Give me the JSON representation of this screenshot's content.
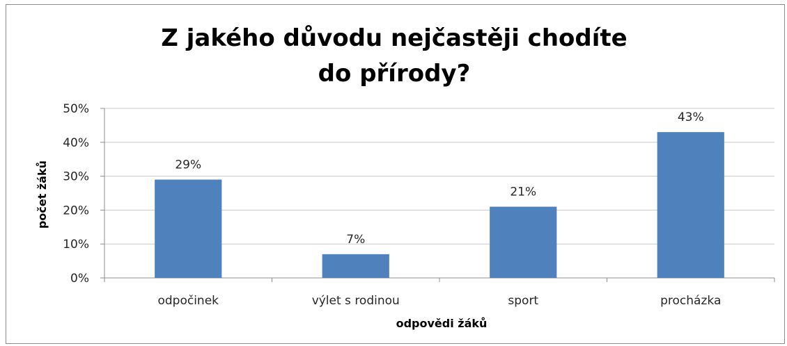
{
  "chart_data": {
    "type": "bar",
    "title_lines": [
      "Z jakého důvodu nejčastěji chodíte",
      "do přírody?"
    ],
    "xlabel": "odpovědi žáků",
    "ylabel": "počet žáků",
    "categories": [
      "odpočinek",
      "výlet s rodinou",
      "sport",
      "procházka"
    ],
    "values": [
      29,
      7,
      21,
      43
    ],
    "data_labels": [
      "29%",
      "7%",
      "21%",
      "43%"
    ],
    "y_ticks": [
      "0%",
      "10%",
      "20%",
      "30%",
      "40%",
      "50%"
    ],
    "ylim": [
      0,
      50
    ],
    "grid": true,
    "legend": "none",
    "bar_color": "#4f81bd"
  }
}
